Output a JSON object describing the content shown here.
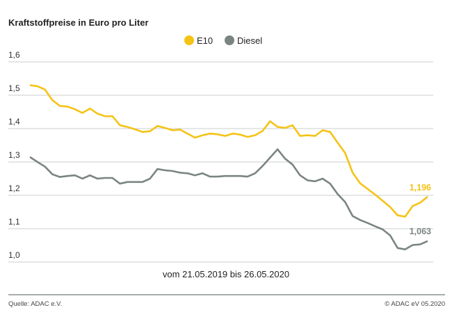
{
  "chart_data": {
    "type": "line",
    "title": "Kraftstoffpreise in Euro pro Liter",
    "xlabel": "vom 21.05.2019 bis 26.05.2020",
    "ylabel": "",
    "ylim": [
      1.0,
      1.6
    ],
    "yticks": [
      "1,0",
      "1,1",
      "1,2",
      "1,3",
      "1,4",
      "1,5",
      "1,6"
    ],
    "ytick_values": [
      1.0,
      1.1,
      1.2,
      1.3,
      1.4,
      1.5,
      1.6
    ],
    "grid": true,
    "legend_placement": "top-center",
    "series": [
      {
        "name": "E10",
        "color": "#F5C316",
        "end_label": "1,196",
        "values": [
          1.53,
          1.527,
          1.517,
          1.485,
          1.468,
          1.466,
          1.458,
          1.447,
          1.46,
          1.445,
          1.437,
          1.437,
          1.41,
          1.405,
          1.398,
          1.39,
          1.392,
          1.408,
          1.402,
          1.395,
          1.397,
          1.385,
          1.373,
          1.38,
          1.385,
          1.383,
          1.378,
          1.385,
          1.382,
          1.375,
          1.38,
          1.393,
          1.422,
          1.405,
          1.402,
          1.41,
          1.378,
          1.38,
          1.378,
          1.395,
          1.39,
          1.358,
          1.327,
          1.268,
          1.236,
          1.219,
          1.202,
          1.184,
          1.165,
          1.14,
          1.136,
          1.168,
          1.178,
          1.196
        ]
      },
      {
        "name": "Diesel",
        "color": "#7A8582",
        "end_label": "1,063",
        "values": [
          1.315,
          1.3,
          1.286,
          1.263,
          1.255,
          1.258,
          1.26,
          1.25,
          1.26,
          1.25,
          1.252,
          1.252,
          1.235,
          1.24,
          1.24,
          1.24,
          1.25,
          1.279,
          1.275,
          1.273,
          1.268,
          1.266,
          1.26,
          1.266,
          1.256,
          1.256,
          1.258,
          1.258,
          1.258,
          1.256,
          1.266,
          1.288,
          1.313,
          1.338,
          1.31,
          1.292,
          1.26,
          1.245,
          1.242,
          1.25,
          1.235,
          1.204,
          1.18,
          1.138,
          1.126,
          1.117,
          1.107,
          1.098,
          1.08,
          1.042,
          1.038,
          1.051,
          1.053,
          1.063
        ]
      }
    ]
  },
  "footer": {
    "source": "Quelle: ADAC e.V.",
    "copyright": "© ADAC eV 05.2020"
  }
}
